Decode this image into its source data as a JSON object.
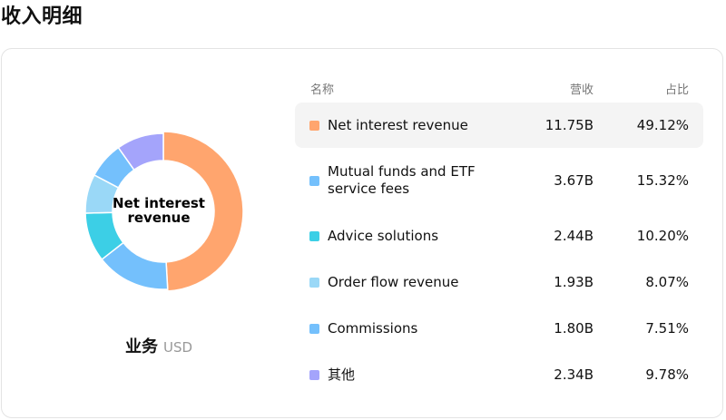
{
  "page": {
    "title": "收入明细"
  },
  "caption": {
    "main": "业务",
    "unit": "USD"
  },
  "table": {
    "headers": {
      "name": "名称",
      "revenue": "营收",
      "share": "占比"
    }
  },
  "chart_data": {
    "type": "pie",
    "title": "",
    "center_label": "Net interest revenue",
    "items": [
      {
        "label": "Net interest revenue",
        "revenue": "11.75B",
        "share_text": "49.12%",
        "value": 49.12,
        "color": "#ffa56e",
        "active": true
      },
      {
        "label": "Mutual funds and ETF service fees",
        "revenue": "3.67B",
        "share_text": "15.32%",
        "value": 15.32,
        "color": "#74c0fc",
        "active": false
      },
      {
        "label": "Advice solutions",
        "revenue": "2.44B",
        "share_text": "10.20%",
        "value": 10.2,
        "color": "#3ccfe6",
        "active": false
      },
      {
        "label": "Order flow revenue",
        "revenue": "1.93B",
        "share_text": "8.07%",
        "value": 8.07,
        "color": "#9ad8f7",
        "active": false
      },
      {
        "label": "Commissions",
        "revenue": "1.80B",
        "share_text": "7.51%",
        "value": 7.51,
        "color": "#74c0fc",
        "active": false
      },
      {
        "label": "其他",
        "revenue": "2.34B",
        "share_text": "9.78%",
        "value": 9.78,
        "color": "#a4a4fb",
        "active": false
      }
    ]
  }
}
